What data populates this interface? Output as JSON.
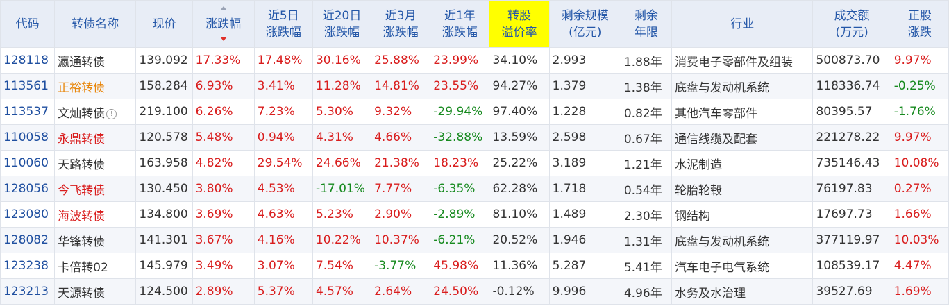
{
  "colors": {
    "header_bg": "#e8edf6",
    "header_text": "#2457a8",
    "highlight_header": "#ffff00",
    "up": "#d91d1d",
    "down": "#178a1f",
    "code": "#1f4fa0",
    "name_orange": "#e8860a"
  },
  "headers": [
    {
      "line1": "代码",
      "line2": ""
    },
    {
      "line1": "转债名称",
      "line2": ""
    },
    {
      "line1": "现价",
      "line2": ""
    },
    {
      "line1": "涨跌幅",
      "line2": ""
    },
    {
      "line1": "近5日",
      "line2": "涨跌幅"
    },
    {
      "line1": "近20日",
      "line2": "涨跌幅"
    },
    {
      "line1": "近3月",
      "line2": "涨跌幅"
    },
    {
      "line1": "近1年",
      "line2": "涨跌幅"
    },
    {
      "line1": "转股",
      "line2": "溢价率"
    },
    {
      "line1": "剩余规模",
      "line2": "(亿元)"
    },
    {
      "line1": "剩余",
      "line2": "年限"
    },
    {
      "line1": "行业",
      "line2": ""
    },
    {
      "line1": "成交额",
      "line2": "(万元)"
    },
    {
      "line1": "正股",
      "line2": "涨跌"
    }
  ],
  "sort": {
    "column": "涨跌幅",
    "direction": "desc",
    "icon": "sort-desc-icon"
  },
  "rows": [
    {
      "code": "128118",
      "name": "瀛通转债",
      "name_color": "plain",
      "price": "139.092",
      "chg": "17.33%",
      "chg5": "17.48%",
      "chg20": "30.16%",
      "chg3m": "25.88%",
      "chg1y": "23.99%",
      "premium": "34.10%",
      "scale": "2.993",
      "years": "1.88年",
      "industry": "消费电子零部件及组装",
      "turnover": "500873.70",
      "stock_chg": "9.97%"
    },
    {
      "code": "113561",
      "name": "正裕转债",
      "name_color": "orange",
      "price": "158.284",
      "chg": "6.93%",
      "chg5": "3.41%",
      "chg20": "11.28%",
      "chg3m": "14.81%",
      "chg1y": "23.55%",
      "premium": "94.27%",
      "scale": "1.379",
      "years": "1.38年",
      "industry": "底盘与发动机系统",
      "turnover": "118336.74",
      "stock_chg": "-0.25%"
    },
    {
      "code": "113537",
      "name": "文灿转债",
      "name_color": "plain",
      "info_icon": true,
      "price": "219.100",
      "chg": "6.26%",
      "chg5": "7.23%",
      "chg20": "5.30%",
      "chg3m": "9.32%",
      "chg1y": "-29.94%",
      "premium": "97.40%",
      "scale": "1.228",
      "years": "0.82年",
      "industry": "其他汽车零部件",
      "turnover": "80395.57",
      "stock_chg": "-1.76%"
    },
    {
      "code": "110058",
      "name": "永鼎转债",
      "name_color": "red",
      "price": "120.578",
      "chg": "5.48%",
      "chg5": "0.94%",
      "chg20": "4.31%",
      "chg3m": "4.66%",
      "chg1y": "-32.88%",
      "premium": "13.59%",
      "scale": "2.598",
      "years": "0.67年",
      "industry": "通信线缆及配套",
      "turnover": "221278.22",
      "stock_chg": "9.97%"
    },
    {
      "code": "110060",
      "name": "天路转债",
      "name_color": "plain",
      "price": "163.958",
      "chg": "4.82%",
      "chg5": "29.54%",
      "chg20": "24.66%",
      "chg3m": "21.38%",
      "chg1y": "18.23%",
      "premium": "25.22%",
      "scale": "3.189",
      "years": "1.21年",
      "industry": "水泥制造",
      "turnover": "735146.43",
      "stock_chg": "10.08%"
    },
    {
      "code": "128056",
      "name": "今飞转债",
      "name_color": "red",
      "price": "130.450",
      "chg": "3.80%",
      "chg5": "4.53%",
      "chg20": "-17.01%",
      "chg3m": "7.77%",
      "chg1y": "-6.35%",
      "premium": "62.28%",
      "scale": "1.718",
      "years": "0.54年",
      "industry": "轮胎轮毂",
      "turnover": "76197.83",
      "stock_chg": "0.27%"
    },
    {
      "code": "123080",
      "name": "海波转债",
      "name_color": "red",
      "price": "134.800",
      "chg": "3.69%",
      "chg5": "4.63%",
      "chg20": "5.23%",
      "chg3m": "2.90%",
      "chg1y": "-2.89%",
      "premium": "81.10%",
      "scale": "1.489",
      "years": "2.30年",
      "industry": "钢结构",
      "turnover": "17697.73",
      "stock_chg": "1.66%"
    },
    {
      "code": "128082",
      "name": "华锋转债",
      "name_color": "plain",
      "price": "141.301",
      "chg": "3.67%",
      "chg5": "4.16%",
      "chg20": "10.22%",
      "chg3m": "10.37%",
      "chg1y": "-6.21%",
      "premium": "20.52%",
      "scale": "1.946",
      "years": "1.31年",
      "industry": "底盘与发动机系统",
      "turnover": "377119.97",
      "stock_chg": "10.03%"
    },
    {
      "code": "123238",
      "name": "卡倍转02",
      "name_color": "plain",
      "price": "145.979",
      "chg": "3.49%",
      "chg5": "3.07%",
      "chg20": "7.54%",
      "chg3m": "-3.77%",
      "chg1y": "45.98%",
      "premium": "11.36%",
      "scale": "5.287",
      "years": "5.41年",
      "industry": "汽车电子电气系统",
      "turnover": "108539.17",
      "stock_chg": "4.47%"
    },
    {
      "code": "123213",
      "name": "天源转债",
      "name_color": "plain",
      "price": "124.500",
      "chg": "2.89%",
      "chg5": "5.37%",
      "chg20": "4.57%",
      "chg3m": "2.64%",
      "chg1y": "24.50%",
      "premium": "-0.12%",
      "scale": "9.996",
      "years": "4.96年",
      "industry": "水务及水治理",
      "turnover": "39527.69",
      "stock_chg": "1.69%"
    }
  ]
}
